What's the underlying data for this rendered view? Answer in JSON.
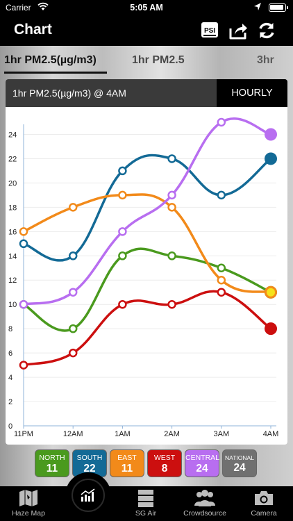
{
  "status": {
    "carrier": "Carrier",
    "time": "5:05 AM"
  },
  "nav": {
    "title": "Chart",
    "psi_label": "PSI"
  },
  "tabs": [
    "1hr PM2.5(µg/m3)",
    "1hr PM2.5",
    "3hr"
  ],
  "card": {
    "title": "1hr PM2.5(µg/m3) @ 4AM",
    "hourly_label": "HOURLY"
  },
  "chart_data": {
    "type": "line",
    "categories": [
      "11PM",
      "12AM",
      "1AM",
      "2AM",
      "3AM",
      "4AM"
    ],
    "y_ticks": [
      "0",
      "2",
      "4",
      "6",
      "8",
      "10",
      "12",
      "14",
      "16",
      "18",
      "20",
      "22",
      "24"
    ],
    "ylim": [
      0,
      25
    ],
    "grid": true,
    "series": [
      {
        "name": "NORTH",
        "color": "#4a9a1e",
        "values": [
          10,
          8,
          14,
          14,
          13,
          11
        ]
      },
      {
        "name": "SOUTH",
        "color": "#136a96",
        "values": [
          15,
          14,
          21,
          22,
          19,
          22
        ]
      },
      {
        "name": "EAST",
        "color": "#f28a1a",
        "values": [
          16,
          18,
          19,
          18,
          12,
          11
        ]
      },
      {
        "name": "WEST",
        "color": "#cc0f0f",
        "values": [
          5,
          6,
          10,
          10,
          11,
          8
        ]
      },
      {
        "name": "CENTRAL",
        "color": "#b86ef0",
        "values": [
          10,
          11,
          16,
          19,
          25,
          24
        ]
      }
    ]
  },
  "legend": [
    {
      "label": "NORTH",
      "value": "11",
      "color": "#4a9a1e"
    },
    {
      "label": "SOUTH",
      "value": "22",
      "color": "#136a96"
    },
    {
      "label": "EAST",
      "value": "11",
      "color": "#f28a1a"
    },
    {
      "label": "WEST",
      "value": "8",
      "color": "#cc0f0f"
    },
    {
      "label": "CENTRAL",
      "value": "24",
      "color": "#b86ef0"
    },
    {
      "label": "NATIONAL",
      "value": "24",
      "color": "#707070"
    }
  ],
  "tabbar": [
    {
      "label": "Haze Map",
      "icon": "map-icon"
    },
    {
      "label": "",
      "icon": "chart-icon"
    },
    {
      "label": "SG Air",
      "icon": "database-icon"
    },
    {
      "label": "Crowdsource",
      "icon": "people-icon"
    },
    {
      "label": "Camera",
      "icon": "camera-icon"
    }
  ]
}
